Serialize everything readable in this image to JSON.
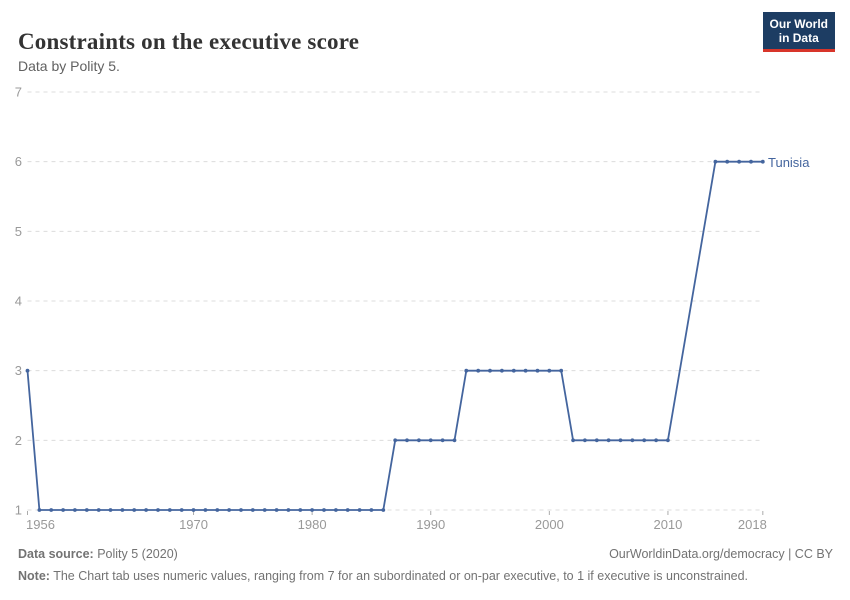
{
  "header": {
    "title": "Constraints on the executive score",
    "subtitle": "Data by Polity 5.",
    "logo": {
      "line1": "Our World",
      "line2": "in Data",
      "bg_color": "#1d3d63",
      "accent_color": "#d8352a"
    }
  },
  "chart_data": {
    "type": "line",
    "title": "Constraints on the executive score",
    "xlabel": "",
    "ylabel": "",
    "xlim": [
      1956,
      2018
    ],
    "ylim": [
      1,
      7
    ],
    "x_ticks": [
      1956,
      1970,
      1980,
      1990,
      2000,
      2010,
      2018
    ],
    "y_ticks": [
      1,
      2,
      3,
      4,
      5,
      6,
      7
    ],
    "grid": "horizontal-dashed",
    "legend_position": "end-of-line-label",
    "colors": {
      "grid": "#dcdcdc",
      "tick_label": "#999999",
      "tick_mark": "#ababab"
    },
    "series": [
      {
        "name": "Tunisia",
        "color": "#44659E",
        "points": [
          [
            1956,
            3
          ],
          [
            1957,
            1
          ],
          [
            1958,
            1
          ],
          [
            1959,
            1
          ],
          [
            1960,
            1
          ],
          [
            1961,
            1
          ],
          [
            1962,
            1
          ],
          [
            1963,
            1
          ],
          [
            1964,
            1
          ],
          [
            1965,
            1
          ],
          [
            1966,
            1
          ],
          [
            1967,
            1
          ],
          [
            1968,
            1
          ],
          [
            1969,
            1
          ],
          [
            1970,
            1
          ],
          [
            1971,
            1
          ],
          [
            1972,
            1
          ],
          [
            1973,
            1
          ],
          [
            1974,
            1
          ],
          [
            1975,
            1
          ],
          [
            1976,
            1
          ],
          [
            1977,
            1
          ],
          [
            1978,
            1
          ],
          [
            1979,
            1
          ],
          [
            1980,
            1
          ],
          [
            1981,
            1
          ],
          [
            1982,
            1
          ],
          [
            1983,
            1
          ],
          [
            1984,
            1
          ],
          [
            1985,
            1
          ],
          [
            1986,
            1
          ],
          [
            1987,
            2
          ],
          [
            1988,
            2
          ],
          [
            1989,
            2
          ],
          [
            1990,
            2
          ],
          [
            1991,
            2
          ],
          [
            1992,
            2
          ],
          [
            1993,
            3
          ],
          [
            1994,
            3
          ],
          [
            1995,
            3
          ],
          [
            1996,
            3
          ],
          [
            1997,
            3
          ],
          [
            1998,
            3
          ],
          [
            1999,
            3
          ],
          [
            2000,
            3
          ],
          [
            2001,
            3
          ],
          [
            2002,
            2
          ],
          [
            2003,
            2
          ],
          [
            2004,
            2
          ],
          [
            2005,
            2
          ],
          [
            2006,
            2
          ],
          [
            2007,
            2
          ],
          [
            2008,
            2
          ],
          [
            2009,
            2
          ],
          [
            2010,
            2
          ],
          [
            2014,
            6
          ],
          [
            2015,
            6
          ],
          [
            2016,
            6
          ],
          [
            2017,
            6
          ],
          [
            2018,
            6
          ]
        ],
        "gap_years": [
          2011,
          2012,
          2013
        ]
      }
    ]
  },
  "footer": {
    "source_label": "Data source:",
    "source_value": " Polity 5 (2020)",
    "link": "OurWorldinData.org/democracy | CC BY",
    "note_label": "Note:",
    "note_value": " The Chart tab uses numeric values, ranging from 7 for an subordinated or on-par executive, to 1 if executive is unconstrained."
  }
}
